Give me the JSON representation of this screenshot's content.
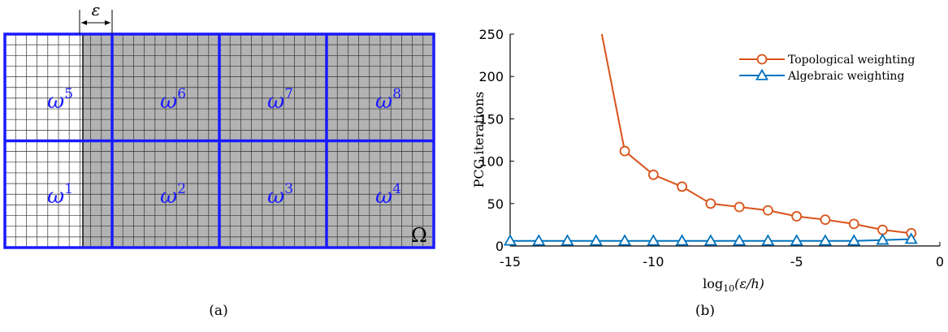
{
  "panel_a": {
    "caption": "(a)",
    "domain_label": "Ω",
    "epsilon_label": "ε",
    "subdomains": [
      {
        "sym": "ω",
        "sup": "5"
      },
      {
        "sym": "ω",
        "sup": "6"
      },
      {
        "sym": "ω",
        "sup": "7"
      },
      {
        "sym": "ω",
        "sup": "8"
      },
      {
        "sym": "ω",
        "sup": "1"
      },
      {
        "sym": "ω",
        "sup": "2"
      },
      {
        "sym": "ω",
        "sup": "3"
      },
      {
        "sym": "ω",
        "sup": "4"
      }
    ],
    "colors": {
      "boundary": "#1a1aff",
      "shaded": "#b3b3b3",
      "grid": "#333333"
    }
  },
  "panel_b": {
    "caption": "(b)"
  },
  "chart_data": {
    "type": "line",
    "xlabel_main": "log",
    "xlabel_sub": "10",
    "xlabel_arg": "(ε/h)",
    "ylabel": "PCG iterations",
    "xlim": [
      -15,
      0
    ],
    "ylim": [
      0,
      250
    ],
    "xticks": [
      -15,
      -10,
      -5,
      0
    ],
    "xtick_labels": [
      "-15",
      "-10",
      "-5",
      "0"
    ],
    "yticks": [
      0,
      50,
      100,
      150,
      200,
      250
    ],
    "ytick_labels": [
      "0",
      "50",
      "100",
      "150",
      "200",
      "250"
    ],
    "legend_position": "top-right",
    "grid": false,
    "series": [
      {
        "name": "Topological weighting",
        "color": "#d95319",
        "marker": "circle",
        "x": [
          -11.8,
          -11,
          -10,
          -9,
          -8,
          -7,
          -6,
          -5,
          -4,
          -3,
          -2,
          -1
        ],
        "y": [
          250,
          112,
          84,
          70,
          50,
          46,
          42,
          35,
          31,
          26,
          19,
          15
        ],
        "marker_from_index": 1
      },
      {
        "name": "Algebraic weighting",
        "color": "#0072bd",
        "marker": "triangle",
        "x": [
          -15,
          -14,
          -13,
          -12,
          -11,
          -10,
          -9,
          -8,
          -7,
          -6,
          -5,
          -4,
          -3,
          -2,
          -1
        ],
        "y": [
          6,
          6,
          6,
          6,
          6,
          6,
          6,
          6,
          6,
          6,
          6,
          6,
          6,
          7,
          8
        ],
        "marker_from_index": 0
      }
    ]
  }
}
